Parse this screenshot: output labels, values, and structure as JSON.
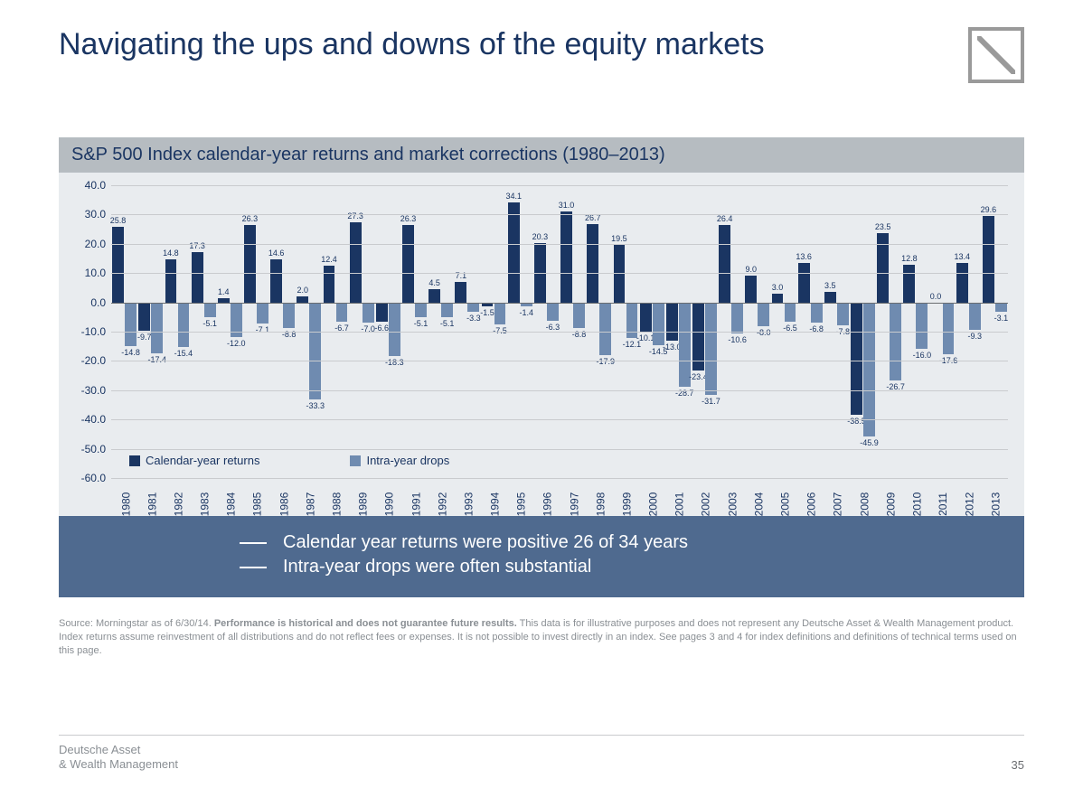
{
  "title": "Navigating the ups and downs of the equity markets",
  "subtitle": "S&P 500 Index calendar-year returns and market corrections (1980–2013)",
  "chart": {
    "type": "grouped-bar",
    "ylim": [
      -60,
      40
    ],
    "ytick_step": 10,
    "yticks": [
      40.0,
      30.0,
      20.0,
      10.0,
      0.0,
      -10.0,
      -20.0,
      -30.0,
      -40.0,
      -50.0,
      -60.0
    ],
    "background_color": "#e9ecef",
    "grid_color": "#c9cbce",
    "zero_line_color": "#6a6d70",
    "series": [
      {
        "key": "returns",
        "label": "Calendar-year returns",
        "color": "#1a3562"
      },
      {
        "key": "drops",
        "label": "Intra-year drops",
        "color": "#6f8bb0"
      }
    ],
    "years": [
      "1980",
      "1981",
      "1982",
      "1983",
      "1984",
      "1985",
      "1986",
      "1987",
      "1988",
      "1989",
      "1990",
      "1991",
      "1992",
      "1993",
      "1994",
      "1995",
      "1996",
      "1997",
      "1998",
      "1999",
      "2000",
      "2001",
      "2002",
      "2003",
      "2004",
      "2005",
      "2006",
      "2007",
      "2008",
      "2009",
      "2010",
      "2011",
      "2012",
      "2013"
    ],
    "returns": [
      25.8,
      -9.7,
      14.8,
      17.3,
      1.4,
      26.3,
      14.6,
      2.0,
      12.4,
      27.3,
      -6.6,
      26.3,
      4.5,
      7.1,
      -1.5,
      34.1,
      20.3,
      31.0,
      26.7,
      19.5,
      -10.1,
      -13.0,
      -23.4,
      26.4,
      9.0,
      3.0,
      13.6,
      3.5,
      -38.5,
      23.5,
      12.8,
      0.0,
      13.4,
      29.6
    ],
    "drops": [
      -14.8,
      -17.4,
      -15.4,
      -5.1,
      -12.0,
      -7.1,
      -8.8,
      -33.3,
      -6.7,
      -7.0,
      -18.3,
      -5.1,
      -5.1,
      -3.3,
      -7.5,
      -1.4,
      -6.3,
      -8.8,
      -17.9,
      -12.1,
      -14.5,
      -28.7,
      -31.7,
      -10.6,
      -8.0,
      -6.5,
      -6.8,
      -7.8,
      -45.9,
      -26.7,
      -16.0,
      -17.6,
      -9.3,
      -3.1
    ],
    "label_fontsize": 9,
    "axis_fontsize": 12
  },
  "callout": {
    "lines": [
      "Calendar year returns were positive 26 of 34 years",
      "Intra-year drops were often substantial"
    ]
  },
  "source": {
    "prefix": "Source: Morningstar as of 6/30/14. ",
    "bold": "Performance is historical and does not guarantee future results.",
    "rest": " This data is for illustrative purposes and does not represent any Deutsche Asset & Wealth Management product. Index returns assume reinvestment of all distributions and do not reflect fees or expenses. It is not possible to invest directly in an index. See pages 3 and 4 for  index definitions and definitions of technical terms used on this page."
  },
  "footer": {
    "line1": "Deutsche Asset",
    "line2": "& Wealth Management"
  },
  "page_number": "35"
}
